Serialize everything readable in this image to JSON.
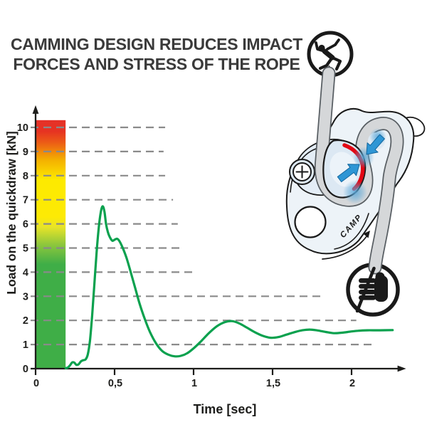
{
  "title": {
    "line1": "CAMMING DESIGN REDUCES IMPACT",
    "line2": "FORCES AND STRESS OF THE ROPE",
    "color": "#3a3a3a"
  },
  "chart_data": {
    "type": "line",
    "title": "",
    "xlabel": "Time [sec]",
    "ylabel": "Load on the quickdraw [kN]",
    "xlim": [
      0,
      2.3
    ],
    "ylim": [
      0,
      10.8
    ],
    "grid": "horizontal-dashed",
    "legend_position": "none",
    "grid_color": "#8a8a8a",
    "axis_color": "#1d1d1b",
    "x_ticks": [
      {
        "v": 0,
        "label": "0"
      },
      {
        "v": 0.5,
        "label": "0,5"
      },
      {
        "v": 1,
        "label": "1"
      },
      {
        "v": 1.5,
        "label": "1,5"
      },
      {
        "v": 2,
        "label": "2"
      }
    ],
    "y_ticks": [
      {
        "v": 0,
        "label": "0"
      },
      {
        "v": 1,
        "label": "1"
      },
      {
        "v": 2,
        "label": "2"
      },
      {
        "v": 3,
        "label": "3"
      },
      {
        "v": 4,
        "label": "4"
      },
      {
        "v": 5,
        "label": "5"
      },
      {
        "v": 6,
        "label": "6"
      },
      {
        "v": 7,
        "label": "7"
      },
      {
        "v": 8,
        "label": "8"
      },
      {
        "v": 9,
        "label": "9"
      },
      {
        "v": 10,
        "label": "10"
      }
    ],
    "gridlines": [
      {
        "kn": 1,
        "t_start": 0.0,
        "t_end": 2.15
      },
      {
        "kn": 2,
        "t_start": 0.0,
        "t_end": 2.03
      },
      {
        "kn": 3,
        "t_start": 0.0,
        "t_end": 1.82
      },
      {
        "kn": 4,
        "t_start": 0.0,
        "t_end": 1.0
      },
      {
        "kn": 5,
        "t_start": 0.0,
        "t_end": 0.94
      },
      {
        "kn": 6,
        "t_start": 0.0,
        "t_end": 0.9
      },
      {
        "kn": 7,
        "t_start": 0.0,
        "t_end": 0.87
      },
      {
        "kn": 8,
        "t_start": 0.0,
        "t_end": 0.82
      },
      {
        "kn": 9,
        "t_start": 0.0,
        "t_end": 0.81
      },
      {
        "kn": 10,
        "t_start": 0.0,
        "t_end": 0.82
      }
    ],
    "risk_bar": {
      "t_range": [
        0,
        0.19
      ],
      "kn_range": [
        0,
        10.3
      ],
      "stops": [
        {
          "offset": 0,
          "color": "#3fae47"
        },
        {
          "offset": 0.42,
          "color": "#3fae47"
        },
        {
          "offset": 0.5,
          "color": "#8ec73c"
        },
        {
          "offset": 0.57,
          "color": "#e8e428"
        },
        {
          "offset": 0.61,
          "color": "#fdea05"
        },
        {
          "offset": 0.76,
          "color": "#fdea00"
        },
        {
          "offset": 0.84,
          "color": "#f4b000"
        },
        {
          "offset": 0.91,
          "color": "#ec5c16"
        },
        {
          "offset": 0.955,
          "color": "#e63322"
        },
        {
          "offset": 1,
          "color": "#e53128"
        }
      ]
    },
    "series": [
      {
        "name": "Load on the quickdraw",
        "color": "#0aa14e",
        "points": [
          [
            0.19,
            0.02
          ],
          [
            0.205,
            0.05
          ],
          [
            0.218,
            0.14
          ],
          [
            0.232,
            0.26
          ],
          [
            0.245,
            0.25
          ],
          [
            0.258,
            0.16
          ],
          [
            0.272,
            0.18
          ],
          [
            0.287,
            0.3
          ],
          [
            0.302,
            0.35
          ],
          [
            0.316,
            0.38
          ],
          [
            0.33,
            0.58
          ],
          [
            0.344,
            1.15
          ],
          [
            0.358,
            2.2
          ],
          [
            0.372,
            3.5
          ],
          [
            0.386,
            4.8
          ],
          [
            0.4,
            5.85
          ],
          [
            0.413,
            6.5
          ],
          [
            0.425,
            6.73
          ],
          [
            0.436,
            6.5
          ],
          [
            0.446,
            6.0
          ],
          [
            0.457,
            5.67
          ],
          [
            0.47,
            5.45
          ],
          [
            0.486,
            5.3
          ],
          [
            0.502,
            5.35
          ],
          [
            0.517,
            5.38
          ],
          [
            0.532,
            5.27
          ],
          [
            0.552,
            5.0
          ],
          [
            0.576,
            4.58
          ],
          [
            0.6,
            4.05
          ],
          [
            0.628,
            3.4
          ],
          [
            0.658,
            2.7
          ],
          [
            0.69,
            2.08
          ],
          [
            0.724,
            1.52
          ],
          [
            0.762,
            1.05
          ],
          [
            0.8,
            0.74
          ],
          [
            0.84,
            0.58
          ],
          [
            0.88,
            0.51
          ],
          [
            0.92,
            0.53
          ],
          [
            0.96,
            0.64
          ],
          [
            1.0,
            0.84
          ],
          [
            1.048,
            1.14
          ],
          [
            1.098,
            1.48
          ],
          [
            1.148,
            1.76
          ],
          [
            1.198,
            1.93
          ],
          [
            1.243,
            1.97
          ],
          [
            1.288,
            1.88
          ],
          [
            1.338,
            1.7
          ],
          [
            1.388,
            1.51
          ],
          [
            1.438,
            1.36
          ],
          [
            1.488,
            1.28
          ],
          [
            1.538,
            1.31
          ],
          [
            1.588,
            1.41
          ],
          [
            1.638,
            1.51
          ],
          [
            1.688,
            1.59
          ],
          [
            1.738,
            1.62
          ],
          [
            1.788,
            1.58
          ],
          [
            1.838,
            1.52
          ],
          [
            1.888,
            1.47
          ],
          [
            1.938,
            1.49
          ],
          [
            1.988,
            1.53
          ],
          [
            2.04,
            1.57
          ],
          [
            2.1,
            1.59
          ],
          [
            2.18,
            1.59
          ],
          [
            2.26,
            1.6
          ]
        ]
      }
    ]
  },
  "illustration": {
    "camp_logo": "CAMP",
    "icons": {
      "top": "falling-climber-icon",
      "bottom": "hand-gripping-rope-icon"
    },
    "colors": {
      "outline": "#1a1a1a",
      "body": "#edf3f8",
      "cam": "#dce8f3",
      "cam_inner": "#ecf3f9",
      "rope": "#d5d7d9",
      "rope_edge": "#585e63",
      "red_contact": "#e30613",
      "blue_arrow": "#2e96d5",
      "blue_arrow_edge": "#13679e",
      "glow": "#58a6d8"
    }
  }
}
